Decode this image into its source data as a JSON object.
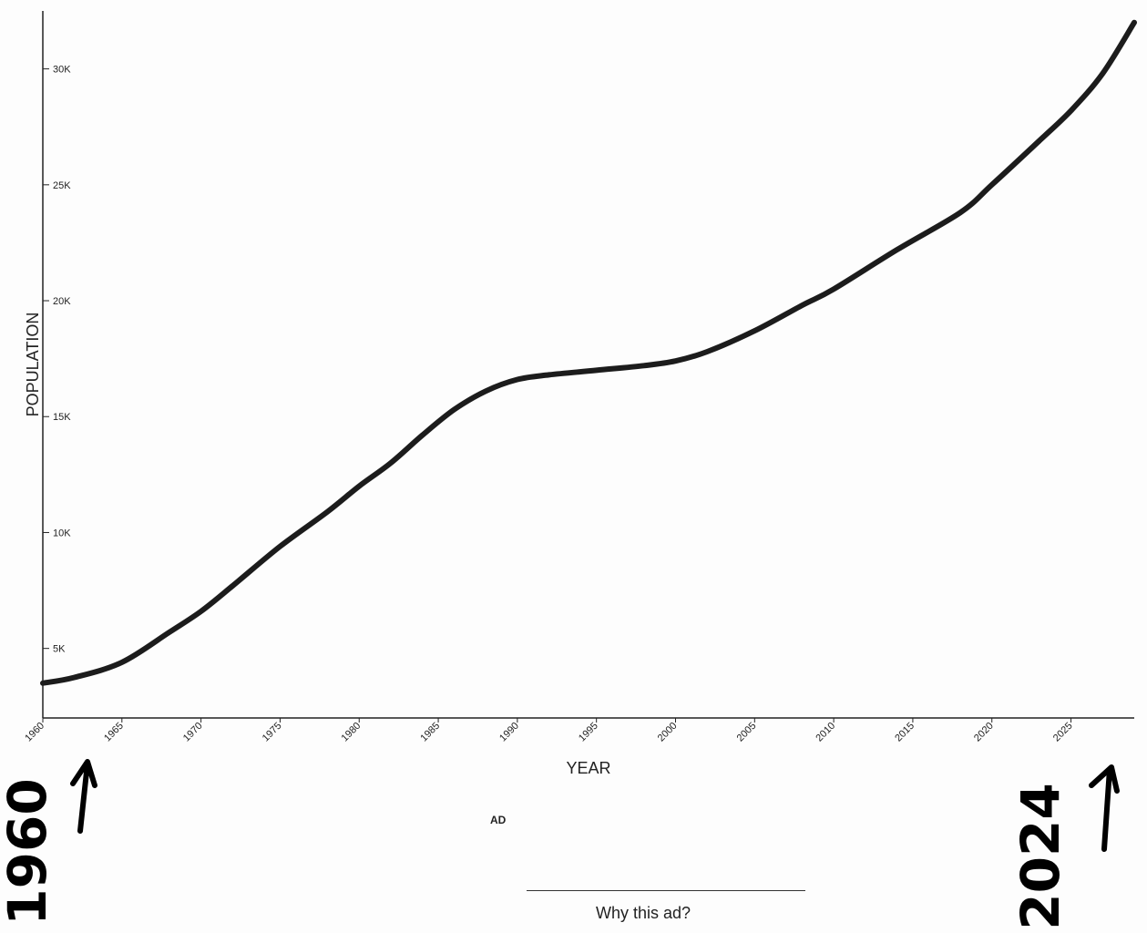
{
  "chart_data": {
    "type": "line",
    "xlabel": "YEAR",
    "ylabel": "POPULATION",
    "xlim": [
      1960,
      2029
    ],
    "ylim": [
      2000,
      32500
    ],
    "xticks": [
      1960,
      1965,
      1970,
      1975,
      1980,
      1985,
      1990,
      1995,
      2000,
      2005,
      2010,
      2015,
      2020,
      2025
    ],
    "yticks": [
      {
        "value": 5000,
        "label": "5K"
      },
      {
        "value": 10000,
        "label": "10K"
      },
      {
        "value": 15000,
        "label": "15K"
      },
      {
        "value": 20000,
        "label": "20K"
      },
      {
        "value": 25000,
        "label": "25K"
      },
      {
        "value": 30000,
        "label": "30K"
      }
    ],
    "grid": false,
    "series": [
      {
        "color": "#1c1c1c",
        "x": [
          1960,
          1962,
          1965,
          1968,
          1970,
          1972,
          1975,
          1978,
          1980,
          1982,
          1984,
          1986,
          1988,
          1990,
          1992,
          1995,
          1998,
          2000,
          2002,
          2005,
          2008,
          2010,
          2014,
          2018,
          2020,
          2023,
          2025,
          2027,
          2029
        ],
        "values": [
          3500,
          3750,
          4400,
          5700,
          6600,
          7700,
          9400,
          10900,
          12000,
          13000,
          14200,
          15300,
          16100,
          16600,
          16800,
          17000,
          17200,
          17400,
          17800,
          18700,
          19800,
          20500,
          22200,
          23800,
          25000,
          26900,
          28200,
          29800,
          32000
        ]
      }
    ]
  },
  "annotations": {
    "start_note": "1960",
    "end_note": "2024"
  },
  "ad": {
    "label": "AD",
    "why_link": "Why this ad?"
  }
}
